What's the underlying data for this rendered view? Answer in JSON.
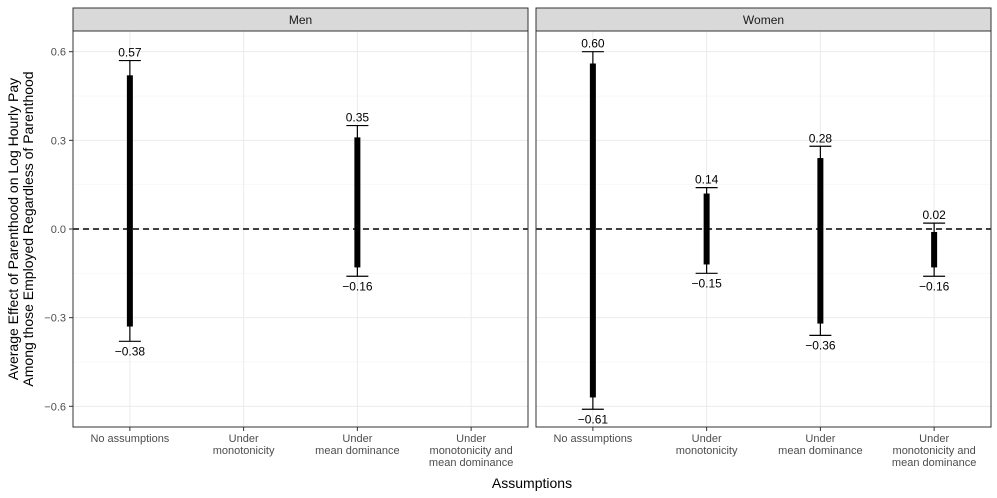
{
  "chart_data": {
    "type": "errorbar",
    "xlabel": "Assumptions",
    "ylabel_lines": [
      "Average Effect of Parenthood on Log Hourly Pay",
      "Among those Employed Regardless of Parenthood"
    ],
    "ylim": [
      -0.67,
      0.67
    ],
    "yticks": [
      -0.6,
      -0.3,
      0.0,
      0.3,
      0.6
    ],
    "ytick_labels": [
      "−0.6",
      "−0.3",
      "0.0",
      "0.3",
      "0.6"
    ],
    "reference_line": 0,
    "categories": [
      [
        "No assumptions"
      ],
      [
        "Under",
        "monotonicity"
      ],
      [
        "Under",
        "mean dominance"
      ],
      [
        "Under",
        "monotonicity and",
        "mean dominance"
      ]
    ],
    "panels": [
      {
        "name": "Men",
        "intervals": [
          {
            "category": 0,
            "bar": [
              -0.33,
              0.52
            ],
            "ci": [
              -0.38,
              0.57
            ],
            "low_label": "−0.38",
            "high_label": "0.57"
          },
          {
            "category": 2,
            "bar": [
              -0.13,
              0.31
            ],
            "ci": [
              -0.16,
              0.35
            ],
            "low_label": "−0.16",
            "high_label": "0.35"
          }
        ]
      },
      {
        "name": "Women",
        "intervals": [
          {
            "category": 0,
            "bar": [
              -0.57,
              0.56
            ],
            "ci": [
              -0.61,
              0.6
            ],
            "low_label": "−0.61",
            "high_label": "0.60"
          },
          {
            "category": 1,
            "bar": [
              -0.12,
              0.12
            ],
            "ci": [
              -0.15,
              0.14
            ],
            "low_label": "−0.15",
            "high_label": "0.14"
          },
          {
            "category": 2,
            "bar": [
              -0.32,
              0.24
            ],
            "ci": [
              -0.36,
              0.28
            ],
            "low_label": "−0.36",
            "high_label": "0.28"
          },
          {
            "category": 3,
            "bar": [
              -0.13,
              -0.01
            ],
            "ci": [
              -0.16,
              0.02
            ],
            "low_label": "−0.16",
            "high_label": "0.02"
          }
        ]
      }
    ]
  }
}
